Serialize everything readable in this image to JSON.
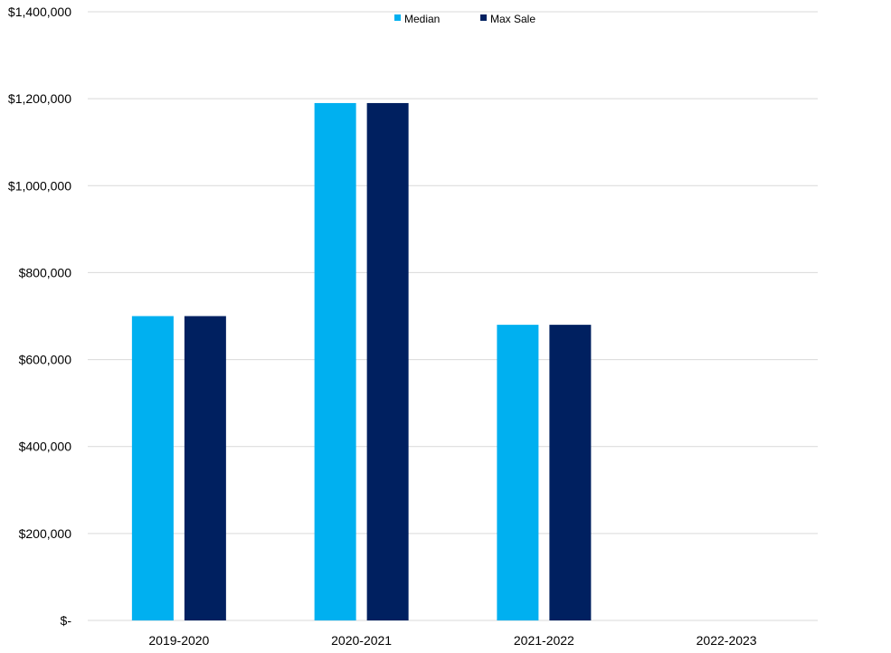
{
  "chart_data": {
    "type": "bar",
    "categories": [
      "2019-2020",
      "2020-2021",
      "2021-2022",
      "2022-2023"
    ],
    "series": [
      {
        "name": "Median",
        "color": "#00B0F0",
        "values": [
          700000,
          1190000,
          680000,
          null
        ]
      },
      {
        "name": "Max Sale",
        "color": "#002060",
        "values": [
          700000,
          1190000,
          680000,
          null
        ]
      }
    ],
    "yticks": [
      0,
      200000,
      400000,
      600000,
      800000,
      1000000,
      1200000,
      1400000
    ],
    "ytick_labels": [
      "$-",
      "$200,000",
      "$400,000",
      "$600,000",
      "$800,000",
      "$1,000,000",
      "$1,200,000",
      "$1,400,000"
    ],
    "ylim": [
      0,
      1400000
    ],
    "grid": true,
    "legend_position": "top-center",
    "gridline_color": "#D9D9D9"
  }
}
